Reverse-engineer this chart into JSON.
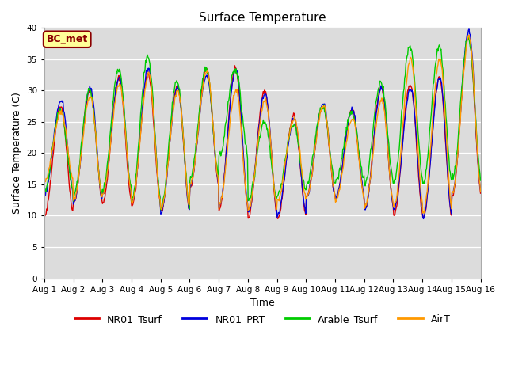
{
  "title": "Surface Temperature",
  "xlabel": "Time",
  "ylabel": "Surface Temperature (C)",
  "ylim": [
    0,
    40
  ],
  "yticks": [
    0,
    5,
    10,
    15,
    20,
    25,
    30,
    35,
    40
  ],
  "bg_color": "#dcdcdc",
  "annotation_text": "BC_met",
  "annotation_bg": "#ffff99",
  "annotation_border": "#8b0000",
  "lines": {
    "NR01_Tsurf": {
      "color": "#dd0000",
      "lw": 1.0
    },
    "NR01_PRT": {
      "color": "#0000dd",
      "lw": 1.0
    },
    "Arable_Tsurf": {
      "color": "#00cc00",
      "lw": 1.0
    },
    "AirT": {
      "color": "#ff9900",
      "lw": 1.0
    }
  },
  "x_tick_labels": [
    "Aug 1",
    "Aug 2",
    "Aug 3",
    "Aug 4",
    "Aug 5",
    "Aug 6",
    "Aug 7",
    "Aug 8",
    "Aug 9",
    "Aug 10",
    "Aug 11",
    "Aug 12",
    "Aug 13",
    "Aug 14",
    "Aug 15",
    "Aug 16"
  ],
  "n_days": 15,
  "pts_per_day": 48
}
